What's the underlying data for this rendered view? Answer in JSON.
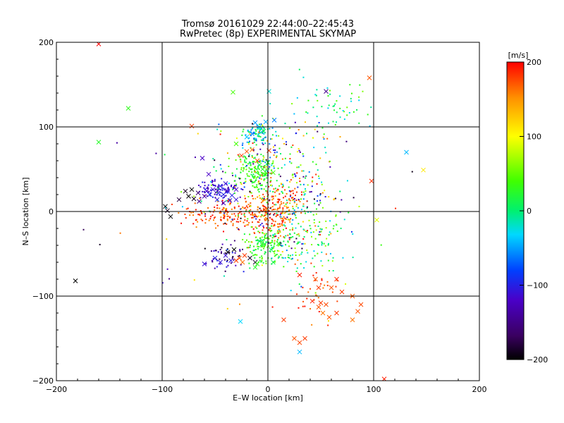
{
  "chart_data": {
    "type": "scatter",
    "title": "Tromsø 20161029 22:44:00–22:45:43",
    "subtitle": "RwPretec (8p) EXPERIMENTAL SKYMAP",
    "xlabel": "E–W location [km]",
    "ylabel": "N–S location [km]",
    "xlim": [
      -200,
      200
    ],
    "ylim": [
      -200,
      200
    ],
    "x_ticks": [
      -200,
      -100,
      0,
      100,
      200
    ],
    "y_ticks": [
      -200,
      -100,
      0,
      100,
      200
    ],
    "x_tick_labels": [
      "−200",
      "−100",
      "0",
      "100",
      "200"
    ],
    "y_tick_labels": [
      "−200",
      "−100",
      "0",
      "100",
      "200"
    ],
    "grid": true,
    "colorbar": {
      "label": "[m/s]",
      "min": -200,
      "max": 200,
      "ticks": [
        200,
        100,
        0,
        -100,
        -200
      ],
      "tick_labels": [
        "200",
        "100",
        "0",
        "−100",
        "−200"
      ],
      "colormap": "rainbow (black–purple–blue–cyan–green–yellow–red)"
    },
    "series": [
      {
        "marker": "x",
        "points": [
          [
            -160,
            198,
            200
          ],
          [
            -132,
            122,
            30
          ],
          [
            -160,
            82,
            25
          ],
          [
            -33,
            141,
            40
          ],
          [
            1,
            142,
            -20
          ],
          [
            -72,
            101,
            180
          ],
          [
            55,
            142,
            -150
          ],
          [
            96,
            158,
            170
          ],
          [
            131,
            70,
            -40
          ],
          [
            147,
            49,
            110
          ],
          [
            -62,
            63,
            -120
          ],
          [
            -56,
            44,
            -120
          ],
          [
            -78,
            24,
            -190
          ],
          [
            -72,
            26,
            -200
          ],
          [
            -66,
            22,
            -160
          ],
          [
            -58,
            24,
            -120
          ],
          [
            -52,
            26,
            -110
          ],
          [
            -47,
            22,
            -105
          ],
          [
            -42,
            20,
            -100
          ],
          [
            -38,
            24,
            -110
          ],
          [
            -34,
            19,
            -100
          ],
          [
            -30,
            26,
            -120
          ],
          [
            -45,
            30,
            -95
          ],
          [
            -40,
            33,
            -110
          ],
          [
            -48,
            14,
            -110
          ],
          [
            -42,
            10,
            -130
          ],
          [
            -36,
            13,
            -100
          ],
          [
            -30,
            14,
            -110
          ],
          [
            -55,
            20,
            -95
          ],
          [
            -60,
            18,
            -130
          ],
          [
            -65,
            12,
            -150
          ],
          [
            -70,
            15,
            -190
          ],
          [
            -75,
            18,
            -200
          ],
          [
            -97,
            6,
            -200
          ],
          [
            -95,
            1,
            -190
          ],
          [
            -92,
            -6,
            -200
          ],
          [
            -84,
            14,
            -180
          ],
          [
            -20,
            88,
            -35
          ],
          [
            -8,
            100,
            -30
          ],
          [
            -4,
            95,
            10
          ],
          [
            -12,
            105,
            -50
          ],
          [
            -15,
            92,
            -60
          ],
          [
            -2,
            106,
            -45
          ],
          [
            6,
            108,
            -60
          ],
          [
            -10,
            60,
            170
          ],
          [
            -5,
            50,
            25
          ],
          [
            0,
            58,
            20
          ],
          [
            -3,
            44,
            30
          ],
          [
            -8,
            55,
            20
          ],
          [
            5,
            46,
            40
          ],
          [
            -25,
            66,
            180
          ],
          [
            -20,
            71,
            170
          ],
          [
            -15,
            73,
            160
          ],
          [
            -30,
            80,
            40
          ],
          [
            1,
            72,
            180
          ],
          [
            -27,
            -55,
            170
          ],
          [
            -24,
            -60,
            160
          ],
          [
            -30,
            -58,
            180
          ],
          [
            -22,
            -52,
            180
          ],
          [
            -12,
            -60,
            -180
          ],
          [
            -17,
            -55,
            -190
          ],
          [
            -32,
            -45,
            -200
          ],
          [
            -38,
            -48,
            -200
          ],
          [
            -45,
            -60,
            -110
          ],
          [
            -50,
            -55,
            -100
          ],
          [
            -60,
            -62,
            -110
          ],
          [
            -40,
            -52,
            -110
          ],
          [
            -35,
            -58,
            -105
          ],
          [
            3,
            -45,
            10
          ],
          [
            -5,
            -40,
            20
          ],
          [
            10,
            -38,
            25
          ],
          [
            -8,
            -35,
            0
          ],
          [
            5,
            -60,
            15
          ],
          [
            -10,
            -62,
            30
          ],
          [
            -12,
            -66,
            25
          ],
          [
            30,
            -75,
            190
          ],
          [
            45,
            -80,
            170
          ],
          [
            48,
            -90,
            180
          ],
          [
            65,
            -80,
            185
          ],
          [
            60,
            -90,
            170
          ],
          [
            70,
            -95,
            180
          ],
          [
            80,
            -100,
            170
          ],
          [
            42,
            -106,
            190
          ],
          [
            50,
            -108,
            180
          ],
          [
            55,
            -110,
            175
          ],
          [
            48,
            -113,
            170
          ],
          [
            52,
            -120,
            160
          ],
          [
            58,
            -125,
            170
          ],
          [
            65,
            -120,
            180
          ],
          [
            88,
            -110,
            175
          ],
          [
            85,
            -118,
            170
          ],
          [
            80,
            -128,
            160
          ],
          [
            15,
            -128,
            180
          ],
          [
            25,
            -150,
            170
          ],
          [
            30,
            -155,
            175
          ],
          [
            35,
            -150,
            180
          ],
          [
            110,
            -198,
            190
          ],
          [
            -26,
            -130,
            -30
          ],
          [
            30,
            -166,
            -40
          ],
          [
            -182,
            -82,
            -200
          ],
          [
            98,
            36,
            185
          ],
          [
            103,
            -10,
            90
          ]
        ]
      },
      {
        "marker": "dot",
        "clusters": [
          {
            "x": -12,
            "y": 45,
            "sx": 12,
            "sy": 14,
            "vmin": 10,
            "vmax": 60,
            "n": 150
          },
          {
            "x": -10,
            "y": 92,
            "sx": 10,
            "sy": 10,
            "vmin": -80,
            "vmax": 30,
            "n": 80
          },
          {
            "x": -45,
            "y": 26,
            "sx": 14,
            "sy": 8,
            "vmin": -140,
            "vmax": -90,
            "n": 85
          },
          {
            "x": -35,
            "y": -2,
            "sx": 30,
            "sy": 12,
            "vmin": 150,
            "vmax": 200,
            "n": 170
          },
          {
            "x": 8,
            "y": 2,
            "sx": 14,
            "sy": 22,
            "vmin": 140,
            "vmax": 200,
            "n": 180
          },
          {
            "x": -2,
            "y": -40,
            "sx": 14,
            "sy": 15,
            "vmin": 0,
            "vmax": 60,
            "n": 140
          },
          {
            "x": 35,
            "y": -30,
            "sx": 25,
            "sy": 35,
            "vmin": -40,
            "vmax": 80,
            "n": 130
          },
          {
            "x": 55,
            "y": 125,
            "sx": 30,
            "sy": 20,
            "vmin": -40,
            "vmax": 60,
            "n": 55
          },
          {
            "x": 45,
            "y": -100,
            "sx": 20,
            "sy": 30,
            "vmin": 150,
            "vmax": 200,
            "n": 35
          },
          {
            "x": 20,
            "y": 50,
            "sx": 25,
            "sy": 40,
            "vmin": -100,
            "vmax": 200,
            "n": 120
          },
          {
            "x": -40,
            "y": -55,
            "sx": 15,
            "sy": 12,
            "vmin": -200,
            "vmax": -90,
            "n": 45
          },
          {
            "x": 5,
            "y": 20,
            "sx": 45,
            "sy": 50,
            "vmin": -200,
            "vmax": 200,
            "n": 220
          },
          {
            "x": 0,
            "y": 0,
            "sx": 90,
            "sy": 85,
            "vmin": -200,
            "vmax": 200,
            "n": 90
          }
        ]
      }
    ]
  },
  "colors": {
    "background": "#ffffff",
    "axes": "#000000",
    "grid": "#000000"
  }
}
